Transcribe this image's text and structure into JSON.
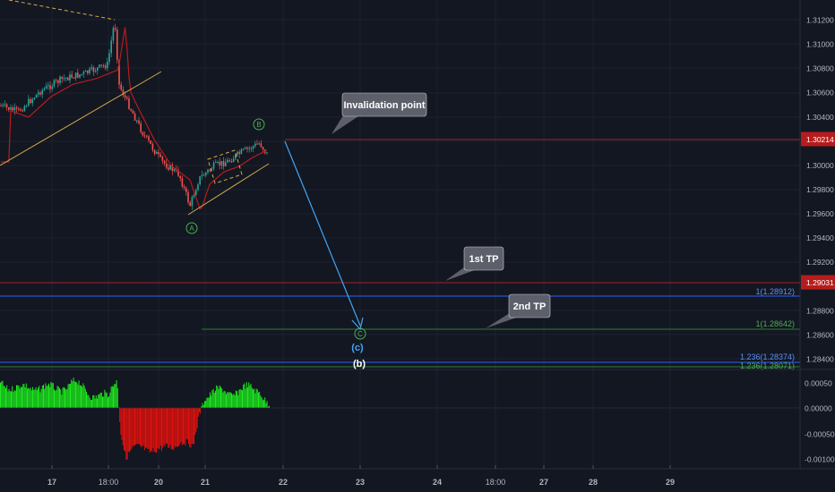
{
  "colors": {
    "background": "#131722",
    "up_candle": "#26a69a",
    "down_candle": "#ef5350",
    "ma_line": "#b71c1c",
    "trendline": "#d4a94a",
    "invalidation_line": "#8b1e24",
    "tp1_line": "#8b1e24",
    "fib_blue": "#2962ff",
    "fib_green": "#2e7d32",
    "projection_arrow": "#42a5f5",
    "osc_up": "#1de91d",
    "osc_down": "#e5120d",
    "price_tag_red": "#b71c1c",
    "callout_bg": "#5d606b"
  },
  "price_axis": {
    "ticks": [
      "1.31200",
      "1.31000",
      "1.30800",
      "1.30600",
      "1.30400",
      "1.30214",
      "1.30000",
      "1.29800",
      "1.29600",
      "1.29400",
      "1.29200",
      "1.29031",
      "1.28800",
      "1.28600",
      "1.28400"
    ],
    "highlighted": [
      "1.30214",
      "1.29031"
    ]
  },
  "oscillator_axis": {
    "ticks": [
      "0.00050",
      "0.00000",
      "-0.00050",
      "-0.00100"
    ]
  },
  "time_axis": {
    "ticks": [
      "17",
      "18:00",
      "20",
      "21",
      "22",
      "23",
      "24",
      "18:00",
      "27",
      "28",
      "29"
    ],
    "bold": [
      "17",
      "20",
      "21",
      "22",
      "23",
      "24",
      "27",
      "28",
      "29"
    ]
  },
  "annotations": {
    "invalidation_label": "Invalidation point",
    "tp1_label": "1st TP",
    "tp2_label": "2nd TP",
    "wave_a": "A",
    "wave_b": "B",
    "wave_c": "C",
    "wave_c_paren": "(c)",
    "wave_b_paren": "(b)",
    "fib_1_blue": "1(1.28912)",
    "fib_1_green": "1(1.28642)",
    "fib_1236_blue": "1.236(1.28374)",
    "fib_1236_green": "1.236(1.28071)"
  }
}
